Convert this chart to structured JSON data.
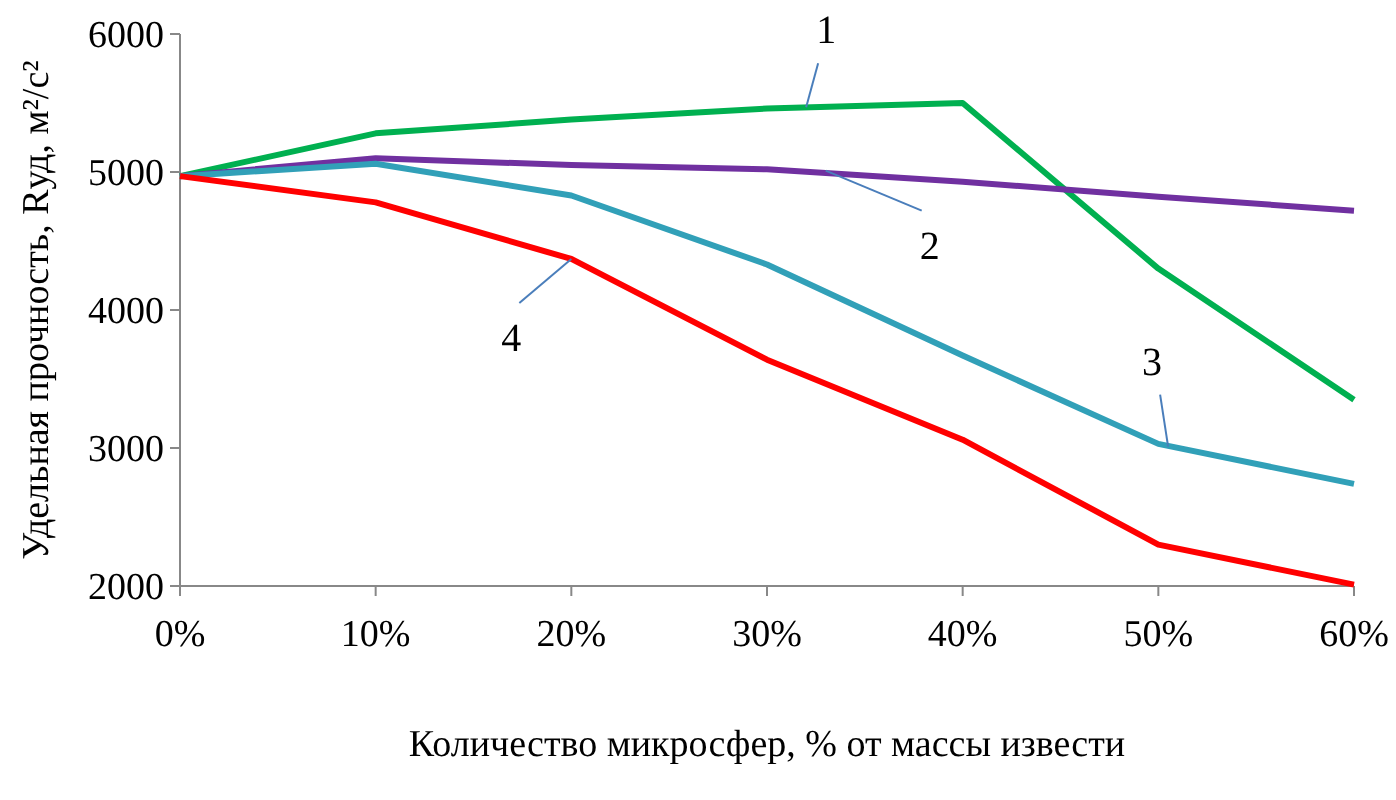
{
  "chart_data": {
    "type": "line",
    "xlabel": "Количество микросфер, % от массы извести",
    "ylabel": "Удельная прочность, Rуд, м²/с²",
    "x": [
      0,
      10,
      20,
      30,
      40,
      50,
      60
    ],
    "xlim": [
      0,
      60
    ],
    "xticks": [
      {
        "value": 0,
        "label": "0%"
      },
      {
        "value": 10,
        "label": "10%"
      },
      {
        "value": 20,
        "label": "20%"
      },
      {
        "value": 30,
        "label": "30%"
      },
      {
        "value": 40,
        "label": "40%"
      },
      {
        "value": 50,
        "label": "50%"
      },
      {
        "value": 60,
        "label": "60%"
      }
    ],
    "ylim": [
      2000,
      6000
    ],
    "yticks": [
      2000,
      3000,
      4000,
      5000,
      6000
    ],
    "grid": false,
    "marker": "none",
    "line_style": "solid",
    "series": [
      {
        "color": "#00b050",
        "values": [
          4970,
          5280,
          5380,
          5460,
          5500,
          4300,
          3350
        ]
      },
      {
        "color": "#7030a0",
        "values": [
          4970,
          5100,
          5050,
          5020,
          4930,
          4820,
          4720
        ]
      },
      {
        "color": "#31a0b8",
        "values": [
          4970,
          5060,
          4830,
          4330,
          3670,
          3030,
          2740
        ]
      },
      {
        "color": "#ff0000",
        "values": [
          4970,
          4780,
          4370,
          3640,
          3060,
          2300,
          2010
        ]
      }
    ],
    "annotations": [
      {
        "text": "1",
        "x": 32,
        "y": 5470
      },
      {
        "text": "2",
        "x": 33,
        "y": 5010
      },
      {
        "text": "3",
        "x": 50.5,
        "y": 3010
      },
      {
        "text": "4",
        "x": 20,
        "y": 4370
      }
    ]
  }
}
